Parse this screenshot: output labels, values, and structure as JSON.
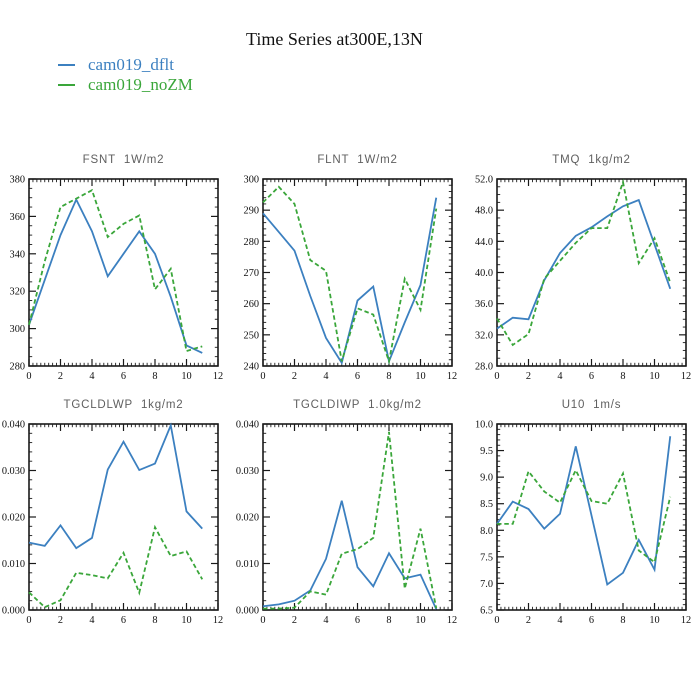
{
  "figure": {
    "title": "Time Series at300E,13N"
  },
  "legend": {
    "items": [
      {
        "label": "cam019_dflt",
        "color": "#3C80C0",
        "style": "solid"
      },
      {
        "label": "cam019_noZM",
        "color": "#3AA63A",
        "style": "dashed"
      }
    ]
  },
  "chart_data": [
    {
      "type": "line",
      "title": "FSNT  1W/m2",
      "x": [
        0,
        1,
        2,
        3,
        4,
        5,
        6,
        7,
        8,
        9,
        10,
        11
      ],
      "series": [
        {
          "name": "cam019_dflt",
          "values": [
            302,
            326,
            350,
            369,
            352,
            328,
            340,
            352,
            340,
            317,
            291,
            287
          ]
        },
        {
          "name": "cam019_noZM",
          "values": [
            302,
            336,
            365,
            369.5,
            374,
            349,
            356,
            360.5,
            321,
            332,
            288,
            290.5
          ]
        }
      ],
      "xlim": [
        0,
        12
      ],
      "xticks": [
        0,
        2,
        4,
        6,
        8,
        10,
        12
      ],
      "xminor_step": 0.25,
      "ylim": [
        280,
        380
      ],
      "ytick_labels": [
        "280",
        "300",
        "320",
        "340",
        "360",
        "380"
      ],
      "yminor_step": 5,
      "grid": false
    },
    {
      "type": "line",
      "title": "FLNT  1W/m2",
      "x": [
        0,
        1,
        2,
        3,
        4,
        5,
        6,
        7,
        8,
        9,
        10,
        11
      ],
      "series": [
        {
          "name": "cam019_dflt",
          "values": [
            289,
            283,
            277,
            262.5,
            249,
            241,
            261,
            265.5,
            241.5,
            254,
            266,
            294
          ]
        },
        {
          "name": "cam019_noZM",
          "values": [
            292.5,
            297.5,
            292,
            274,
            270.5,
            241.5,
            258.5,
            256.5,
            241.5,
            268,
            258,
            290.5
          ]
        }
      ],
      "xlim": [
        0,
        12
      ],
      "xticks": [
        0,
        2,
        4,
        6,
        8,
        10,
        12
      ],
      "xminor_step": 0.25,
      "ylim": [
        240,
        300
      ],
      "ytick_labels": [
        "240",
        "250",
        "260",
        "270",
        "280",
        "290",
        "300"
      ],
      "yminor_step": 2,
      "grid": false
    },
    {
      "type": "line",
      "title": "TMQ  1kg/m2",
      "x": [
        0,
        1,
        2,
        3,
        4,
        5,
        6,
        7,
        8,
        9,
        10,
        11
      ],
      "series": [
        {
          "name": "cam019_dflt",
          "values": [
            32.8,
            34.2,
            34.0,
            39.0,
            42.5,
            44.7,
            45.8,
            47.2,
            48.5,
            49.3,
            43.6,
            37.9
          ]
        },
        {
          "name": "cam019_noZM",
          "values": [
            34.1,
            30.7,
            32.1,
            39.2,
            41.5,
            43.8,
            45.7,
            45.7,
            51.6,
            41.2,
            44.4,
            38.7
          ]
        }
      ],
      "xlim": [
        0,
        12
      ],
      "xticks": [
        0,
        2,
        4,
        6,
        8,
        10,
        12
      ],
      "xminor_step": 0.25,
      "ylim": [
        28.0,
        52.0
      ],
      "ytick_labels": [
        "28.0",
        "32.0",
        "36.0",
        "40.0",
        "44.0",
        "48.0",
        "52.0"
      ],
      "yminor_step": 1,
      "grid": false
    },
    {
      "type": "line",
      "title": "TGCLDLWP  1kg/m2",
      "x": [
        0,
        1,
        2,
        3,
        4,
        5,
        6,
        7,
        8,
        9,
        10,
        11
      ],
      "series": [
        {
          "name": "cam019_dflt",
          "values": [
            0.0145,
            0.0138,
            0.0182,
            0.0133,
            0.0155,
            0.0302,
            0.0362,
            0.0301,
            0.0315,
            0.0397,
            0.0212,
            0.0175
          ]
        },
        {
          "name": "cam019_noZM",
          "values": [
            0.0038,
            0.0006,
            0.0021,
            0.008,
            0.0075,
            0.0068,
            0.0123,
            0.0037,
            0.0178,
            0.0116,
            0.0126,
            0.0066
          ]
        }
      ],
      "xlim": [
        0,
        12
      ],
      "xticks": [
        0,
        2,
        4,
        6,
        8,
        10,
        12
      ],
      "xminor_step": 0.25,
      "ylim": [
        0.0,
        0.04
      ],
      "ytick_labels": [
        "0.000",
        "0.010",
        "0.020",
        "0.030",
        "0.040"
      ],
      "yminor_step": 0.002,
      "grid": false
    },
    {
      "type": "line",
      "title": "TGCLDIWP  1.0kg/m2",
      "x": [
        0,
        1,
        2,
        3,
        4,
        5,
        6,
        7,
        8,
        9,
        10,
        11
      ],
      "series": [
        {
          "name": "cam019_dflt",
          "values": [
            0.0008,
            0.0012,
            0.002,
            0.0042,
            0.011,
            0.0235,
            0.0092,
            0.0051,
            0.0122,
            0.0068,
            0.0076,
            0.0002
          ]
        },
        {
          "name": "cam019_noZM",
          "values": [
            0.0003,
            0.0003,
            0.0005,
            0.004,
            0.0033,
            0.0121,
            0.0131,
            0.0155,
            0.0383,
            0.0046,
            0.0175,
            0.0004
          ]
        }
      ],
      "xlim": [
        0,
        12
      ],
      "xticks": [
        0,
        2,
        4,
        6,
        8,
        10,
        12
      ],
      "xminor_step": 0.25,
      "ylim": [
        0.0,
        0.04
      ],
      "ytick_labels": [
        "0.000",
        "0.010",
        "0.020",
        "0.030",
        "0.040"
      ],
      "yminor_step": 0.002,
      "grid": false
    },
    {
      "type": "line",
      "title": "U10  1m/s",
      "x": [
        0,
        1,
        2,
        3,
        4,
        5,
        6,
        7,
        8,
        9,
        10,
        11
      ],
      "series": [
        {
          "name": "cam019_dflt",
          "values": [
            8.12,
            8.54,
            8.4,
            8.03,
            8.31,
            9.58,
            8.28,
            6.98,
            7.2,
            7.82,
            7.26,
            9.77
          ]
        },
        {
          "name": "cam019_noZM",
          "values": [
            8.12,
            8.12,
            9.11,
            8.73,
            8.52,
            9.13,
            8.55,
            8.5,
            9.07,
            7.62,
            7.4,
            8.63
          ]
        }
      ],
      "xlim": [
        0,
        12
      ],
      "xticks": [
        0,
        2,
        4,
        6,
        8,
        10,
        12
      ],
      "xminor_step": 0.25,
      "ylim": [
        6.5,
        10.0
      ],
      "ytick_labels": [
        "6.5",
        "7.0",
        "7.5",
        "8.0",
        "8.5",
        "9.0",
        "9.5",
        "10.0"
      ],
      "yminor_step": 0.1,
      "grid": false
    }
  ]
}
